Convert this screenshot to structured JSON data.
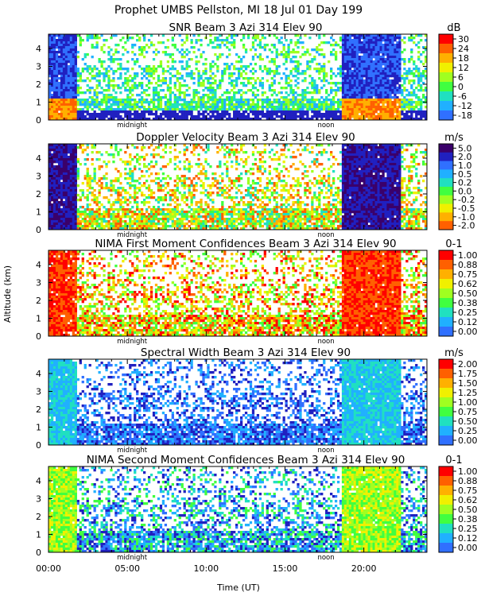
{
  "header": {
    "title": "Prophet  UMBS Pellston, MI  18 Jul 01 Day 199"
  },
  "axes": {
    "ylabel": "Altitude (km)",
    "xlabel": "Time (UT)",
    "x_ticks": [
      "00:00",
      "05:00",
      "10:00",
      "15:00",
      "20:00"
    ],
    "y_ticks": [
      "0",
      "1",
      "2",
      "3",
      "4"
    ],
    "markers": [
      "midnight",
      "noon"
    ]
  },
  "chart_data": [
    {
      "type": "heatmap",
      "title": "SNR Beam 3 Azi 314 Elev 90",
      "unit": "dB",
      "colorbar_ticks": [
        "30",
        "24",
        "18",
        "12",
        "6",
        "0",
        "-6",
        "-12",
        "-18"
      ],
      "xlim": [
        0,
        24
      ],
      "ylim": [
        0,
        4.8
      ]
    },
    {
      "type": "heatmap",
      "title": "Doppler Velocity Beam 3 Azi 314 Elev 90",
      "unit": "m/s",
      "colorbar_ticks": [
        "5.0",
        "2.0",
        "1.0",
        "0.5",
        "0.2",
        "0.0",
        "-0.2",
        "-0.5",
        "-1.0",
        "-2.0"
      ],
      "xlim": [
        0,
        24
      ],
      "ylim": [
        0,
        4.8
      ]
    },
    {
      "type": "heatmap",
      "title": "NIMA First Moment Confidences Beam 3 Azi 314 Elev 90",
      "unit": "0-1",
      "colorbar_ticks": [
        "1.00",
        "0.88",
        "0.75",
        "0.62",
        "0.50",
        "0.38",
        "0.25",
        "0.12",
        "0.00"
      ],
      "xlim": [
        0,
        24
      ],
      "ylim": [
        0,
        4.8
      ]
    },
    {
      "type": "heatmap",
      "title": "Spectral Width Beam 3 Azi 314 Elev 90",
      "unit": "m/s",
      "colorbar_ticks": [
        "2.00",
        "1.75",
        "1.50",
        "1.25",
        "1.00",
        "0.75",
        "0.50",
        "0.25",
        "0.00"
      ],
      "xlim": [
        0,
        24
      ],
      "ylim": [
        0,
        4.8
      ]
    },
    {
      "type": "heatmap",
      "title": "NIMA Second Moment Confidences Beam 3 Azi 314 Elev 90",
      "unit": "0-1",
      "colorbar_ticks": [
        "1.00",
        "0.88",
        "0.75",
        "0.62",
        "0.50",
        "0.38",
        "0.25",
        "0.12",
        "0.00"
      ],
      "xlim": [
        0,
        24
      ],
      "ylim": [
        0,
        4.8
      ]
    }
  ],
  "colors": {
    "scale": [
      "#2020c0",
      "#3070ff",
      "#20b0ff",
      "#20e0c0",
      "#40ff40",
      "#a0ff20",
      "#f0f000",
      "#ffb000",
      "#ff6000",
      "#ff0000"
    ],
    "doppler_scale": [
      "#ff6000",
      "#ffb000",
      "#f0f000",
      "#a0ff20",
      "#40ff40",
      "#20e0c0",
      "#20b0ff",
      "#3070ff",
      "#2020c0",
      "#3a006a"
    ]
  }
}
